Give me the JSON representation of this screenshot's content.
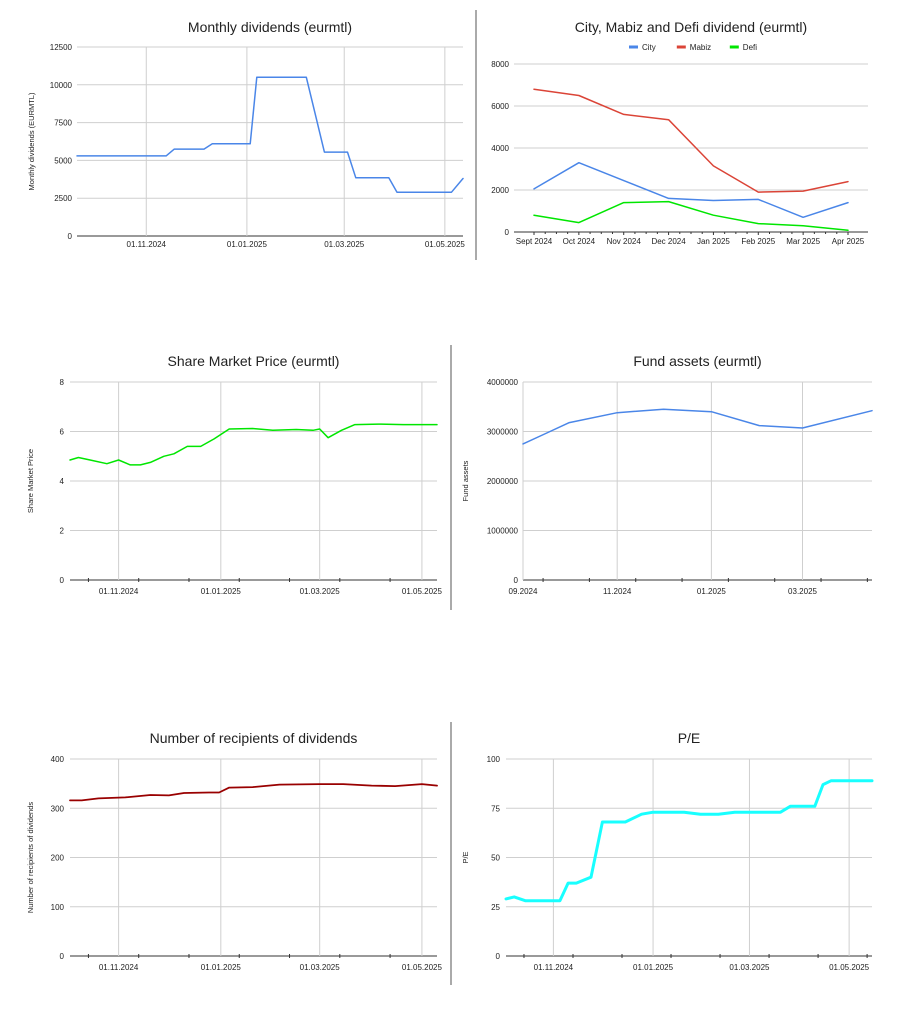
{
  "chart_data": [
    {
      "id": "monthly",
      "type": "line",
      "title": "Monthly dividends (eurmtl)",
      "ylabel": "Monthly dividends (EURMTL)",
      "ylim": [
        0,
        12500
      ],
      "yticks": [
        0,
        2500,
        5000,
        7500,
        10000,
        12500
      ],
      "xlim": [
        "2024-09-20",
        "2025-05-12"
      ],
      "xticks": [
        {
          "x": "2024-11-01",
          "label": "01.11.2024"
        },
        {
          "x": "2025-01-01",
          "label": "01.01.2025"
        },
        {
          "x": "2025-03-01",
          "label": "01.03.2025"
        },
        {
          "x": "2025-05-01",
          "label": "01.05.2025"
        }
      ],
      "grid": true,
      "series": [
        {
          "color": "#4a86e8",
          "points": [
            [
              "2024-09-20",
              5300
            ],
            [
              "2024-10-08",
              5300
            ],
            [
              "2024-10-15",
              5300
            ],
            [
              "2024-10-22",
              5300
            ],
            [
              "2024-11-01",
              5300
            ],
            [
              "2024-11-08",
              5300
            ],
            [
              "2024-11-13",
              5300
            ],
            [
              "2024-11-18",
              5750
            ],
            [
              "2024-12-06",
              5750
            ],
            [
              "2024-12-11",
              6100
            ],
            [
              "2024-12-28",
              6100
            ],
            [
              "2025-01-03",
              6100
            ],
            [
              "2025-01-07",
              10500
            ],
            [
              "2025-02-06",
              10500
            ],
            [
              "2025-02-12",
              7800
            ],
            [
              "2025-02-17",
              5550
            ],
            [
              "2025-03-03",
              5550
            ],
            [
              "2025-03-08",
              3850
            ],
            [
              "2025-03-28",
              3850
            ],
            [
              "2025-04-02",
              2900
            ],
            [
              "2025-05-01",
              2900
            ],
            [
              "2025-05-05",
              2900
            ],
            [
              "2025-05-12",
              3800
            ]
          ]
        }
      ]
    },
    {
      "id": "city",
      "type": "line",
      "title": "City, Mabiz and Defi dividend (eurmtl)",
      "ylim": [
        0,
        8000
      ],
      "yticks": [
        0,
        2000,
        4000,
        6000,
        8000
      ],
      "categories": [
        "Sept 2024",
        "Oct 2024",
        "Nov 2024",
        "Dec 2024",
        "Jan 2025",
        "Feb 2025",
        "Mar 2025",
        "Apr 2025"
      ],
      "grid": false,
      "legend_position": "top",
      "series": [
        {
          "name": "City",
          "color": "#4a86e8",
          "values": [
            2050,
            3300,
            2450,
            1600,
            1500,
            1550,
            700,
            1400
          ]
        },
        {
          "name": "Mabiz",
          "color": "#db4437",
          "values": [
            6800,
            6500,
            5600,
            5350,
            3150,
            1900,
            1950,
            2400
          ]
        },
        {
          "name": "Defi",
          "color": "#00e600",
          "values": [
            800,
            450,
            1400,
            1450,
            800,
            400,
            300,
            80
          ]
        }
      ]
    },
    {
      "id": "share",
      "type": "line",
      "title": "Share Market Price (eurmtl)",
      "ylabel": "Share Market Price",
      "ylim": [
        0,
        8
      ],
      "yticks": [
        0,
        2,
        4,
        6,
        8
      ],
      "xlim": [
        "2024-10-03",
        "2025-05-10"
      ],
      "xticks": [
        {
          "x": "2024-11-01",
          "label": "01.11.2024"
        },
        {
          "x": "2025-01-01",
          "label": "01.01.2025"
        },
        {
          "x": "2025-03-01",
          "label": "01.03.2025"
        },
        {
          "x": "2025-05-01",
          "label": "01.05.2025"
        }
      ],
      "grid": true,
      "series": [
        {
          "color": "#00e600",
          "points": [
            [
              "2024-10-03",
              4.85
            ],
            [
              "2024-10-08",
              4.95
            ],
            [
              "2024-10-15",
              4.85
            ],
            [
              "2024-10-25",
              4.7
            ],
            [
              "2024-11-01",
              4.85
            ],
            [
              "2024-11-08",
              4.65
            ],
            [
              "2024-11-14",
              4.65
            ],
            [
              "2024-11-20",
              4.75
            ],
            [
              "2024-11-28",
              5.0
            ],
            [
              "2024-12-04",
              5.1
            ],
            [
              "2024-12-12",
              5.4
            ],
            [
              "2024-12-20",
              5.4
            ],
            [
              "2024-12-28",
              5.7
            ],
            [
              "2025-01-06",
              6.1
            ],
            [
              "2025-01-20",
              6.12
            ],
            [
              "2025-02-01",
              6.05
            ],
            [
              "2025-02-15",
              6.08
            ],
            [
              "2025-02-25",
              6.05
            ],
            [
              "2025-03-01",
              6.1
            ],
            [
              "2025-03-06",
              5.75
            ],
            [
              "2025-03-14",
              6.05
            ],
            [
              "2025-03-22",
              6.28
            ],
            [
              "2025-04-05",
              6.3
            ],
            [
              "2025-04-20",
              6.28
            ],
            [
              "2025-05-10",
              6.28
            ]
          ]
        }
      ]
    },
    {
      "id": "fund",
      "type": "line",
      "title": "Fund assets (eurmtl)",
      "ylabel": "Fund assets",
      "ylim": [
        0,
        4000000
      ],
      "yticks": [
        0,
        1000000,
        2000000,
        3000000,
        4000000
      ],
      "xlim": [
        "2024-09-01",
        "2025-04-15"
      ],
      "xticks": [
        {
          "x": "2024-09-01",
          "label": "09.2024"
        },
        {
          "x": "2024-11-01",
          "label": "11.2024"
        },
        {
          "x": "2025-01-01",
          "label": "01.2025"
        },
        {
          "x": "2025-03-01",
          "label": "03.2025"
        }
      ],
      "grid": true,
      "series": [
        {
          "color": "#4a86e8",
          "points": [
            [
              "2024-09-01",
              2750000
            ],
            [
              "2024-09-15",
              2950000
            ],
            [
              "2024-10-01",
              3180000
            ],
            [
              "2024-11-01",
              3380000
            ],
            [
              "2024-12-01",
              3450000
            ],
            [
              "2025-01-01",
              3400000
            ],
            [
              "2025-02-01",
              3120000
            ],
            [
              "2025-03-01",
              3070000
            ],
            [
              "2025-04-15",
              3420000
            ]
          ]
        }
      ]
    },
    {
      "id": "recipients",
      "type": "line",
      "title": "Number of recipients of dividends",
      "ylabel": "Number of recipients of dividends",
      "ylim": [
        0,
        400
      ],
      "yticks": [
        0,
        100,
        200,
        300,
        400
      ],
      "xlim": [
        "2024-10-03",
        "2025-05-10"
      ],
      "xticks": [
        {
          "x": "2024-11-01",
          "label": "01.11.2024"
        },
        {
          "x": "2025-01-01",
          "label": "01.01.2025"
        },
        {
          "x": "2025-03-01",
          "label": "01.03.2025"
        },
        {
          "x": "2025-05-01",
          "label": "01.05.2025"
        }
      ],
      "grid": true,
      "series": [
        {
          "color": "#990000",
          "points": [
            [
              "2024-10-03",
              316
            ],
            [
              "2024-10-10",
              316
            ],
            [
              "2024-10-20",
              320
            ],
            [
              "2024-11-05",
              322
            ],
            [
              "2024-11-20",
              327
            ],
            [
              "2024-12-01",
              326
            ],
            [
              "2024-12-10",
              331
            ],
            [
              "2024-12-25",
              332
            ],
            [
              "2024-12-31",
              332
            ],
            [
              "2025-01-06",
              342
            ],
            [
              "2025-01-20",
              343
            ],
            [
              "2025-02-05",
              348
            ],
            [
              "2025-03-01",
              349
            ],
            [
              "2025-03-15",
              349
            ],
            [
              "2025-04-01",
              346
            ],
            [
              "2025-04-15",
              345
            ],
            [
              "2025-05-01",
              349
            ],
            [
              "2025-05-10",
              346
            ]
          ]
        }
      ]
    },
    {
      "id": "pe",
      "type": "line",
      "title": "P/E",
      "ylabel": "P/E",
      "ylim": [
        0,
        100
      ],
      "yticks": [
        0,
        25,
        50,
        75,
        100
      ],
      "xlim": [
        "2024-10-03",
        "2025-05-15"
      ],
      "xticks": [
        {
          "x": "2024-11-01",
          "label": "01.11.2024"
        },
        {
          "x": "2025-01-01",
          "label": "01.01.2025"
        },
        {
          "x": "2025-03-01",
          "label": "01.03.2025"
        },
        {
          "x": "2025-05-01",
          "label": "01.05.2025"
        }
      ],
      "grid": true,
      "series": [
        {
          "color": "#18ffff",
          "points": [
            [
              "2024-10-03",
              29
            ],
            [
              "2024-10-08",
              30
            ],
            [
              "2024-10-15",
              28
            ],
            [
              "2024-10-22",
              28
            ],
            [
              "2024-11-05",
              28
            ],
            [
              "2024-11-10",
              37
            ],
            [
              "2024-11-15",
              37
            ],
            [
              "2024-11-24",
              40
            ],
            [
              "2024-12-01",
              68
            ],
            [
              "2024-12-15",
              68
            ],
            [
              "2024-12-25",
              72
            ],
            [
              "2025-01-01",
              73
            ],
            [
              "2025-01-20",
              73
            ],
            [
              "2025-01-30",
              72
            ],
            [
              "2025-02-10",
              72
            ],
            [
              "2025-02-20",
              73
            ],
            [
              "2025-03-20",
              73
            ],
            [
              "2025-03-26",
              76
            ],
            [
              "2025-04-10",
              76
            ],
            [
              "2025-04-15",
              87
            ],
            [
              "2025-04-20",
              89
            ],
            [
              "2025-05-15",
              89
            ]
          ]
        }
      ]
    }
  ]
}
